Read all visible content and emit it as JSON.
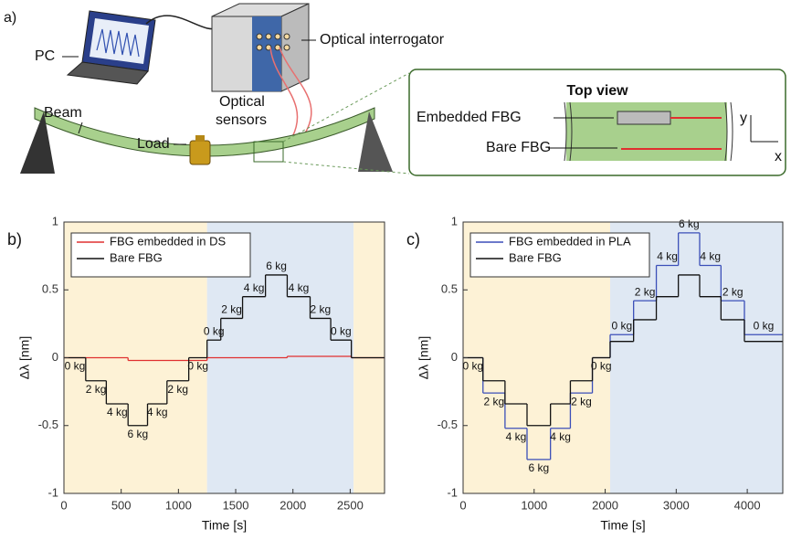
{
  "panel_a": {
    "label": "a)",
    "pc": "PC",
    "interrogator": "Optical interrogator",
    "beam": "Beam",
    "load": "Load",
    "sensors_line1": "Optical",
    "sensors_line2": "sensors",
    "top_view": "Top view",
    "embedded": "Embedded FBG",
    "bare": "Bare FBG",
    "axis_y": "y",
    "axis_x": "x"
  },
  "chart_data": [
    {
      "type": "step",
      "panel": "b)",
      "xlabel": "Time [s]",
      "ylabel": "Δλ [nm]",
      "xlim": [
        0,
        2800
      ],
      "ylim": [
        -1,
        1
      ],
      "xticks": [
        0,
        500,
        1000,
        1500,
        2000,
        2500
      ],
      "yticks": [
        -1,
        -0.5,
        0,
        0.5,
        1
      ],
      "legend": "upper left",
      "regions": [
        {
          "x": [
            0,
            1250
          ],
          "color": "#fdf2d6"
        },
        {
          "x": [
            1250,
            2530
          ],
          "color": "#dfe8f3"
        },
        {
          "x": [
            2530,
            2800
          ],
          "color": "#fdf2d6"
        }
      ],
      "series": [
        {
          "name": "FBG embedded in DS",
          "color": "#e03030",
          "x": [
            0,
            560,
            1250,
            1950,
            2510
          ],
          "values": [
            0,
            -0.02,
            0,
            0.01,
            0
          ]
        },
        {
          "name": "Bare FBG",
          "color": "#111111",
          "x": [
            0,
            190,
            370,
            560,
            730,
            900,
            1090,
            1250,
            1370,
            1560,
            1760,
            1950,
            2150,
            2330,
            2510
          ],
          "values": [
            0,
            -0.17,
            -0.34,
            -0.5,
            -0.34,
            -0.17,
            0,
            0.13,
            0.29,
            0.45,
            0.61,
            0.45,
            0.29,
            0.13,
            0
          ],
          "step_labels": [
            "0 kg",
            "2 kg",
            "4 kg",
            "6 kg",
            "4 kg",
            "2 kg",
            "0 kg",
            "0 kg",
            "2 kg",
            "4 kg",
            "6 kg",
            "4 kg",
            "2 kg",
            "0 kg",
            null
          ]
        }
      ]
    },
    {
      "type": "step",
      "panel": "c)",
      "xlabel": "Time [s]",
      "ylabel": "Δλ [nm]",
      "xlim": [
        0,
        4500
      ],
      "ylim": [
        -1,
        1
      ],
      "xticks": [
        0,
        1000,
        2000,
        3000,
        4000
      ],
      "yticks": [
        -1,
        -0.5,
        0,
        0.5,
        1
      ],
      "legend": "upper left",
      "regions": [
        {
          "x": [
            0,
            2070
          ],
          "color": "#fdf2d6"
        },
        {
          "x": [
            2070,
            4500
          ],
          "color": "#dfe8f3"
        }
      ],
      "series": [
        {
          "name": "FBG embedded in PLA",
          "color": "#3b4fb8",
          "x": [
            0,
            280,
            590,
            900,
            1230,
            1510,
            1820,
            2070,
            2400,
            2720,
            3030,
            3330,
            3630,
            3960
          ],
          "values": [
            0,
            -0.26,
            -0.52,
            -0.75,
            -0.52,
            -0.26,
            0,
            0.17,
            0.42,
            0.68,
            0.92,
            0.68,
            0.42,
            0.17
          ],
          "step_labels": [
            "0 kg",
            "2 kg",
            "4 kg",
            "6 kg",
            "4 kg",
            "2 kg",
            "0 kg",
            "0 kg",
            "2 kg",
            "4 kg",
            "6 kg",
            "4 kg",
            "2 kg",
            "0 kg"
          ]
        },
        {
          "name": "Bare FBG",
          "color": "#111111",
          "x": [
            0,
            280,
            590,
            900,
            1230,
            1510,
            1820,
            2070,
            2400,
            2720,
            3030,
            3330,
            3630,
            3960
          ],
          "values": [
            0,
            -0.17,
            -0.34,
            -0.5,
            -0.34,
            -0.17,
            0,
            0.12,
            0.28,
            0.45,
            0.61,
            0.45,
            0.28,
            0.12
          ]
        }
      ]
    }
  ]
}
